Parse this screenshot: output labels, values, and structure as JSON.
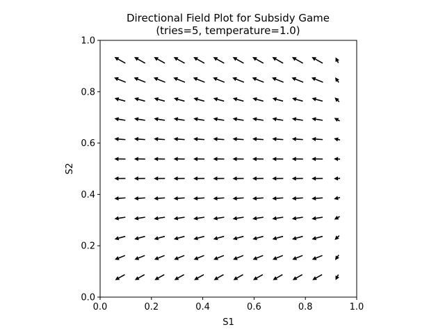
{
  "chart_data": {
    "type": "quiver",
    "title": "Directional Field Plot for Subsidy Game",
    "subtitle": "(tries=5, temperature=1.0)",
    "xlabel": "S1",
    "ylabel": "S2",
    "xlim": [
      0.0,
      1.0
    ],
    "ylim": [
      0.0,
      1.0
    ],
    "xticks": [
      "0.0",
      "0.2",
      "0.4",
      "0.6",
      "0.8",
      "1.0"
    ],
    "yticks": [
      "0.0",
      "0.2",
      "0.4",
      "0.6",
      "0.8",
      "1.0"
    ],
    "grid": false,
    "legend": "none",
    "arrow_color": "#000000",
    "grid_x": [
      0.077,
      0.154,
      0.231,
      0.308,
      0.385,
      0.462,
      0.538,
      0.615,
      0.692,
      0.769,
      0.846,
      0.923
    ],
    "grid_y": [
      0.077,
      0.154,
      0.231,
      0.308,
      0.385,
      0.462,
      0.538,
      0.615,
      0.692,
      0.769,
      0.846,
      0.923
    ]
  }
}
